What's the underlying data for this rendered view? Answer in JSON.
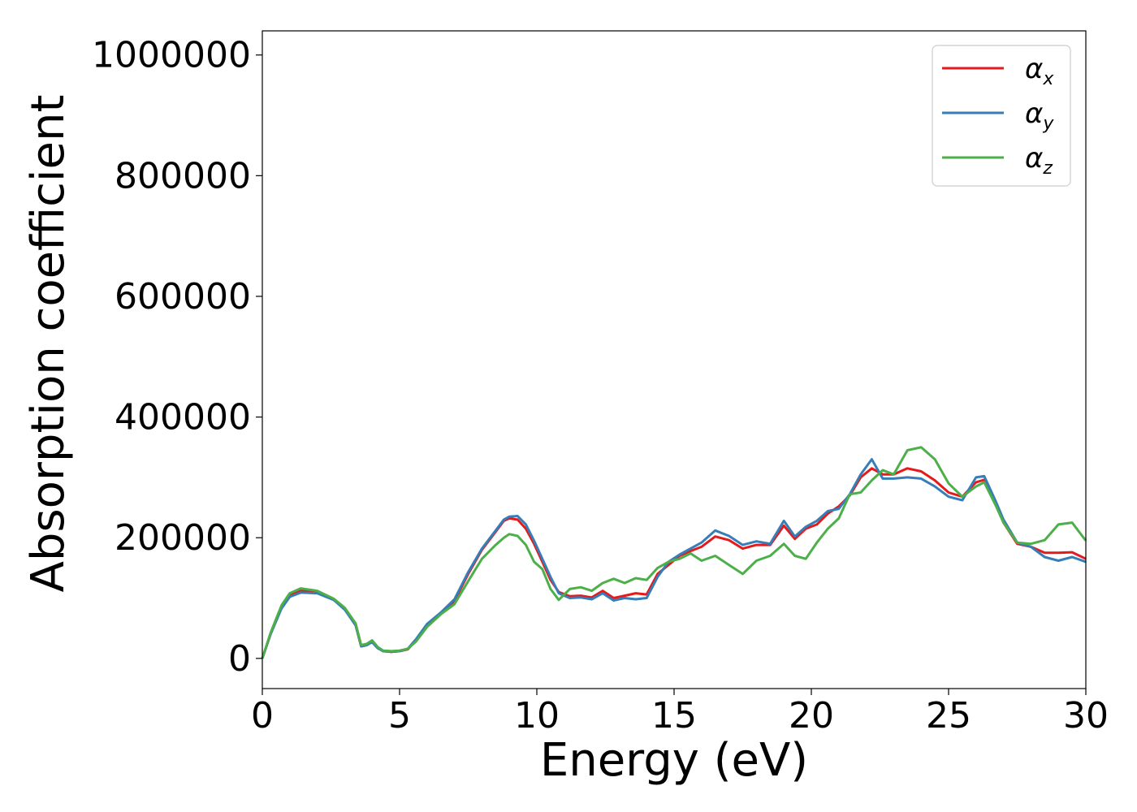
{
  "chart_data": {
    "type": "line",
    "title": "",
    "xlabel": "Energy (eV)",
    "ylabel": "Absorption coefficient",
    "xlim": [
      0,
      30
    ],
    "ylim": [
      -50000,
      1040000
    ],
    "xticks": [
      0,
      5,
      10,
      15,
      20,
      25,
      30
    ],
    "xtick_labels": [
      "0",
      "5",
      "10",
      "15",
      "20",
      "25",
      "30"
    ],
    "yticks": [
      0,
      200000,
      400000,
      600000,
      800000,
      1000000
    ],
    "ytick_labels": [
      "0",
      "200000",
      "400000",
      "600000",
      "800000",
      "1000000"
    ],
    "grid": false,
    "legend_position": "top-right",
    "series": [
      {
        "name": "αx",
        "legend_base": "α",
        "legend_sub": "x",
        "color": "#e41a1c",
        "x": [
          0,
          0.3,
          0.7,
          1.0,
          1.4,
          2.0,
          2.6,
          3.0,
          3.4,
          3.6,
          3.8,
          4.0,
          4.2,
          4.4,
          4.7,
          5.0,
          5.3,
          5.6,
          6.0,
          6.5,
          7.0,
          7.5,
          8.0,
          8.5,
          8.8,
          9.0,
          9.3,
          9.6,
          9.9,
          10.2,
          10.5,
          10.8,
          11.2,
          11.6,
          12.0,
          12.4,
          12.8,
          13.2,
          13.6,
          14.0,
          14.4,
          14.8,
          15.2,
          15.6,
          16.0,
          16.5,
          17.0,
          17.5,
          18.0,
          18.5,
          19.0,
          19.4,
          19.8,
          20.2,
          20.6,
          21.0,
          21.4,
          21.8,
          22.2,
          22.6,
          23.0,
          23.5,
          24.0,
          24.5,
          25.0,
          25.5,
          26.0,
          26.3,
          26.7,
          27.0,
          27.5,
          28.0,
          28.5,
          29.0,
          29.5,
          30.0
        ],
        "y": [
          0,
          40000,
          85000,
          105000,
          112000,
          110000,
          98000,
          82000,
          55000,
          20000,
          22000,
          28000,
          18000,
          12000,
          11000,
          12000,
          15000,
          30000,
          55000,
          75000,
          95000,
          140000,
          180000,
          210000,
          228000,
          232000,
          230000,
          215000,
          190000,
          160000,
          130000,
          110000,
          103000,
          104000,
          101000,
          112000,
          100000,
          104000,
          108000,
          106000,
          140000,
          155000,
          170000,
          178000,
          185000,
          202000,
          196000,
          182000,
          188000,
          188000,
          220000,
          198000,
          215000,
          222000,
          240000,
          252000,
          270000,
          300000,
          315000,
          305000,
          305000,
          315000,
          310000,
          295000,
          275000,
          268000,
          292000,
          296000,
          260000,
          225000,
          190000,
          185000,
          175000,
          175000,
          176000,
          165000
        ]
      },
      {
        "name": "αy",
        "legend_base": "α",
        "legend_sub": "y",
        "color": "#377eb8",
        "x": [
          0,
          0.3,
          0.7,
          1.0,
          1.4,
          2.0,
          2.6,
          3.0,
          3.4,
          3.6,
          3.8,
          4.0,
          4.2,
          4.4,
          4.7,
          5.0,
          5.3,
          5.6,
          6.0,
          6.5,
          7.0,
          7.5,
          8.0,
          8.5,
          8.8,
          9.0,
          9.3,
          9.6,
          9.9,
          10.2,
          10.5,
          10.8,
          11.2,
          11.6,
          12.0,
          12.4,
          12.8,
          13.2,
          13.6,
          14.0,
          14.4,
          14.8,
          15.2,
          15.6,
          16.0,
          16.5,
          17.0,
          17.5,
          18.0,
          18.5,
          19.0,
          19.4,
          19.8,
          20.2,
          20.6,
          21.0,
          21.4,
          21.8,
          22.2,
          22.6,
          23.0,
          23.5,
          24.0,
          24.5,
          25.0,
          25.5,
          26.0,
          26.3,
          26.7,
          27.0,
          27.5,
          28.0,
          28.5,
          29.0,
          29.5,
          30.0
        ],
        "y": [
          0,
          40000,
          83000,
          102000,
          109000,
          108000,
          97000,
          81000,
          55000,
          20000,
          22000,
          27000,
          17000,
          12000,
          11000,
          12000,
          16000,
          32000,
          57000,
          76000,
          98000,
          143000,
          182000,
          212000,
          230000,
          235000,
          236000,
          222000,
          195000,
          165000,
          135000,
          108000,
          100000,
          101000,
          98000,
          108000,
          96000,
          100000,
          98000,
          100000,
          135000,
          160000,
          172000,
          182000,
          192000,
          212000,
          203000,
          188000,
          194000,
          190000,
          228000,
          202000,
          218000,
          228000,
          244000,
          248000,
          272000,
          305000,
          330000,
          298000,
          298000,
          300000,
          298000,
          285000,
          268000,
          262000,
          300000,
          302000,
          262000,
          230000,
          192000,
          185000,
          168000,
          162000,
          168000,
          160000
        ]
      },
      {
        "name": "αz",
        "legend_base": "α",
        "legend_sub": "z",
        "color": "#4daf4a",
        "x": [
          0,
          0.3,
          0.7,
          1.0,
          1.4,
          2.0,
          2.6,
          3.0,
          3.4,
          3.6,
          3.8,
          4.0,
          4.2,
          4.4,
          4.7,
          5.0,
          5.3,
          5.6,
          6.0,
          6.5,
          7.0,
          7.5,
          8.0,
          8.5,
          8.8,
          9.0,
          9.3,
          9.6,
          9.9,
          10.2,
          10.5,
          10.8,
          11.2,
          11.6,
          12.0,
          12.4,
          12.8,
          13.2,
          13.6,
          14.0,
          14.4,
          14.8,
          15.2,
          15.6,
          16.0,
          16.5,
          17.0,
          17.5,
          18.0,
          18.5,
          19.0,
          19.4,
          19.8,
          20.2,
          20.6,
          21.0,
          21.4,
          21.8,
          22.2,
          22.6,
          23.0,
          23.5,
          24.0,
          24.5,
          25.0,
          25.5,
          26.0,
          26.3,
          26.7,
          27.0,
          27.5,
          28.0,
          28.5,
          29.0,
          29.5,
          30.0
        ],
        "y": [
          0,
          42000,
          88000,
          108000,
          116000,
          112000,
          99000,
          84000,
          58000,
          22000,
          24000,
          30000,
          19000,
          13000,
          12000,
          13000,
          16000,
          28000,
          52000,
          73000,
          90000,
          128000,
          165000,
          188000,
          200000,
          206000,
          203000,
          188000,
          160000,
          148000,
          115000,
          97000,
          115000,
          118000,
          112000,
          125000,
          132000,
          125000,
          133000,
          130000,
          150000,
          160000,
          165000,
          174000,
          162000,
          170000,
          155000,
          140000,
          162000,
          170000,
          190000,
          170000,
          165000,
          192000,
          215000,
          232000,
          272000,
          275000,
          295000,
          312000,
          305000,
          345000,
          350000,
          330000,
          290000,
          268000,
          285000,
          292000,
          255000,
          225000,
          192000,
          190000,
          196000,
          222000,
          225000,
          195000
        ]
      }
    ]
  }
}
